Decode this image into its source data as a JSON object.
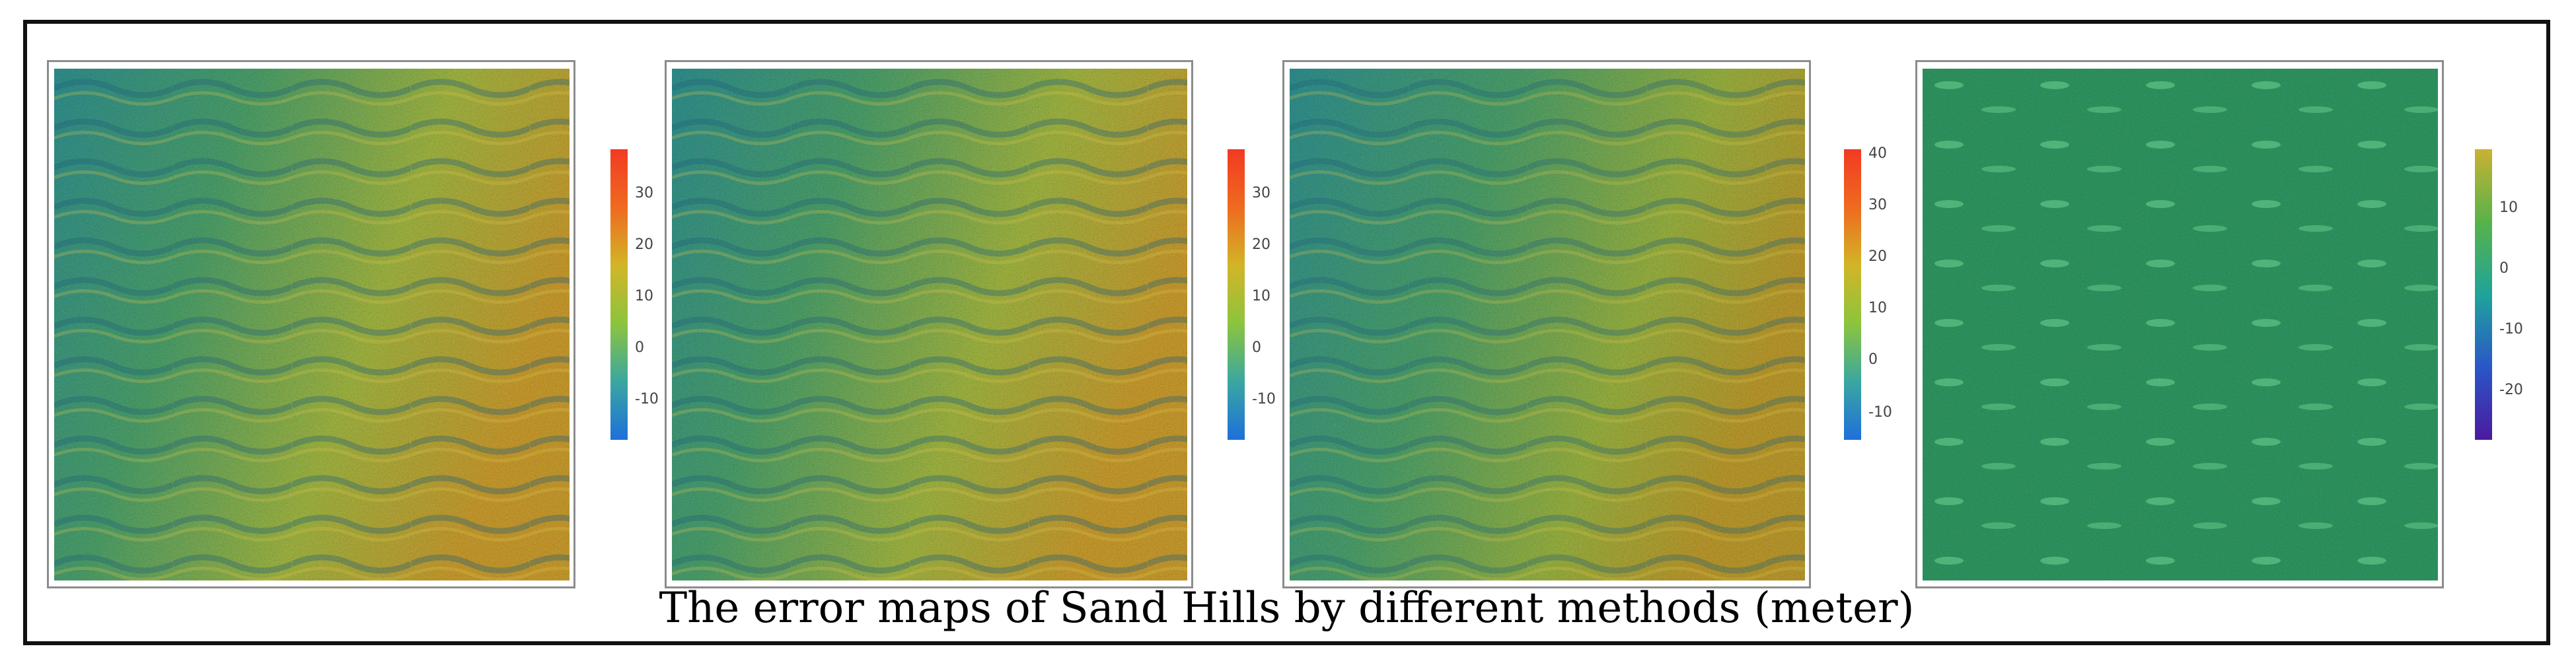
{
  "caption": "The error maps of Sand Hills by different methods (meter)",
  "panels": [
    {
      "colorbar_ticks": [
        "30",
        "20",
        "10",
        "0",
        "-10"
      ],
      "colormap": [
        "#1f6fdc",
        "#3aa7a0",
        "#8cc43e",
        "#d2b527",
        "#ef6a1f",
        "#f23a22"
      ]
    },
    {
      "colorbar_ticks": [
        "30",
        "20",
        "10",
        "0",
        "-10"
      ],
      "colormap": [
        "#1f6fdc",
        "#3aa7a0",
        "#8cc43e",
        "#d2b527",
        "#ef6a1f",
        "#f23a22"
      ]
    },
    {
      "colorbar_ticks": [
        "40",
        "30",
        "20",
        "10",
        "0",
        "-10"
      ],
      "colormap": [
        "#1f6fdc",
        "#3aa7a0",
        "#8cc43e",
        "#d2b527",
        "#ef6a1f",
        "#f23a22"
      ]
    },
    {
      "colorbar_ticks": [
        "10",
        "0",
        "-10",
        "-20"
      ],
      "colormap": [
        "#4b1a9e",
        "#2a56c8",
        "#1fa49a",
        "#58b24a",
        "#c9b232"
      ]
    }
  ],
  "colors": {
    "panel_border": "#8c8c8c",
    "frame_border": "#111111"
  }
}
